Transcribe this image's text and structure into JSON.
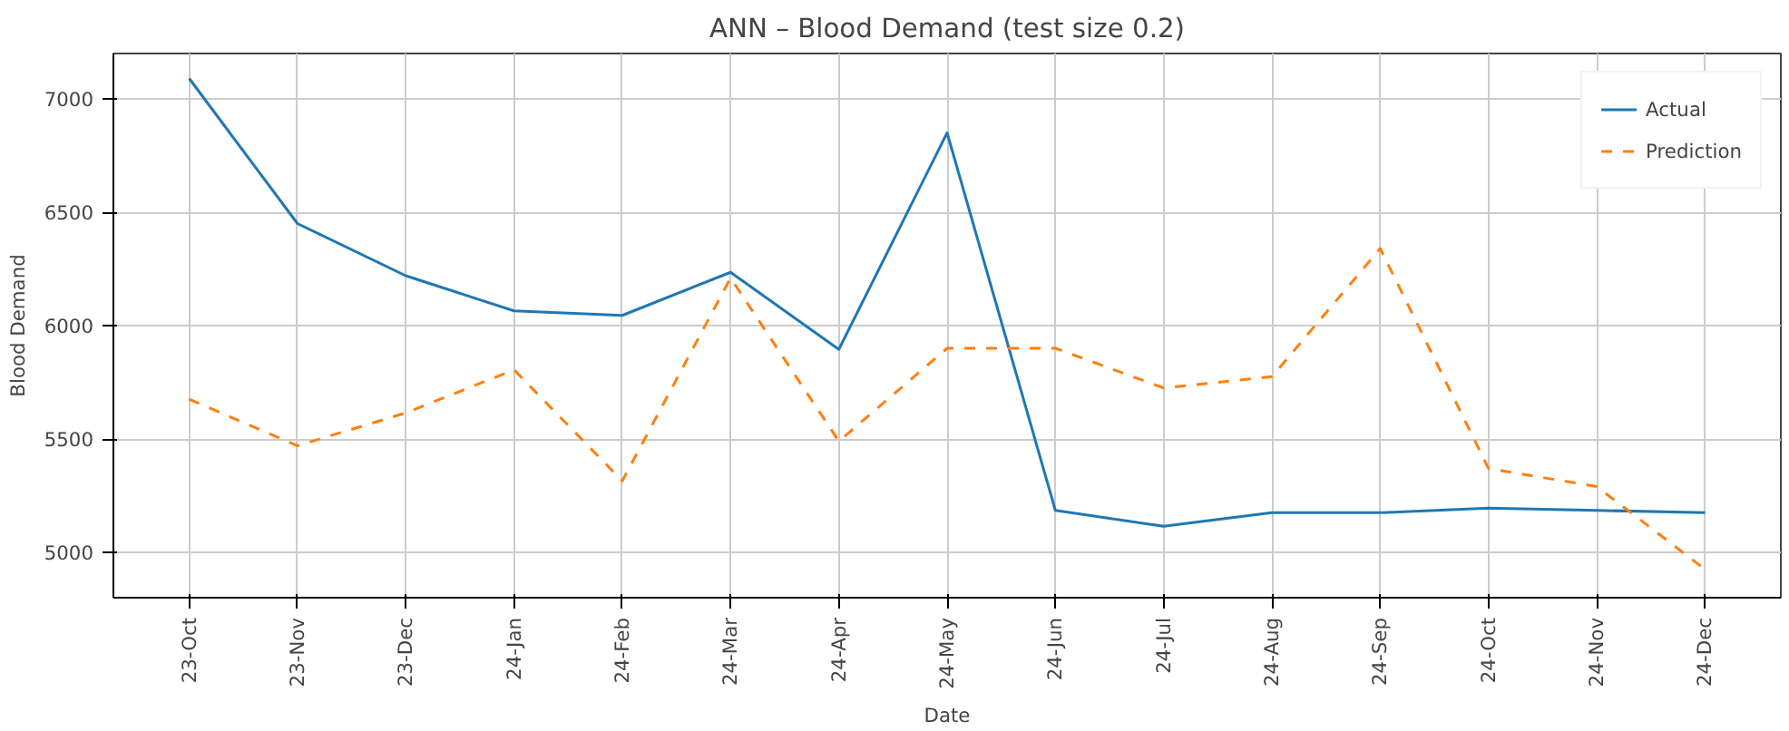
{
  "chart_data": {
    "type": "line",
    "title": "ANN – Blood Demand (test size 0.2)",
    "xlabel": "Date",
    "ylabel": "Blood Demand",
    "categories": [
      "23-Oct",
      "23-Nov",
      "23-Dec",
      "24-Jan",
      "24-Feb",
      "24-Mar",
      "24-Apr",
      "24-May",
      "24-Jun",
      "24-Jul",
      "24-Aug",
      "24-Sep",
      "24-Oct",
      "24-Nov",
      "24-Dec"
    ],
    "series": [
      {
        "name": "Actual",
        "color": "#1f77b4",
        "line_style": "solid",
        "values": [
          7090,
          6450,
          6220,
          6065,
          6045,
          6235,
          5895,
          6850,
          5185,
          5115,
          5175,
          5175,
          5195,
          5185,
          5175
        ]
      },
      {
        "name": "Prediction",
        "color": "#ff7f0e",
        "line_style": "dashed",
        "values": [
          5675,
          5470,
          5615,
          5805,
          5315,
          6210,
          5490,
          5900,
          5900,
          5725,
          5775,
          6340,
          5370,
          5290,
          4925
        ]
      }
    ],
    "ylim": [
      4800,
      7200
    ],
    "yticks": [
      5000,
      5500,
      6000,
      6500,
      7000
    ],
    "grid": true,
    "legend": "top right"
  }
}
